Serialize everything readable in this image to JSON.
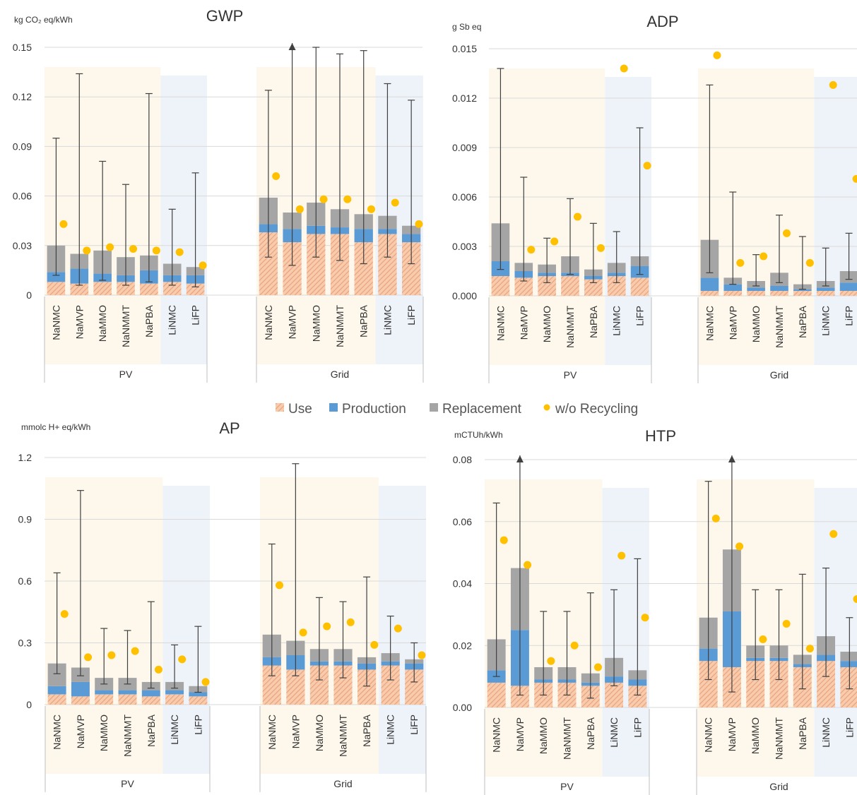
{
  "legend": [
    {
      "key": "use",
      "label": "Use",
      "color": "#F4B183",
      "symbol": "hatch"
    },
    {
      "key": "production",
      "label": "Production",
      "color": "#5B9BD5",
      "symbol": "square"
    },
    {
      "key": "replacement",
      "label": "Replacement",
      "color": "#A5A5A5",
      "symbol": "square"
    },
    {
      "key": "wo_recycling",
      "label": "w/o Recycling",
      "color": "#FFC000",
      "symbol": "dot"
    }
  ],
  "chart_data": [
    {
      "type": "bar",
      "stacked": true,
      "title": "GWP",
      "ylabel": "kg CO₂ eq/kWh",
      "ylim": [
        0,
        0.15
      ],
      "yticks": [
        "0",
        "0.03",
        "0.06",
        "0.09",
        "0.12",
        "0.15"
      ],
      "ytick_values": [
        0,
        0.03,
        0.06,
        0.09,
        0.12,
        0.15
      ],
      "grid": true,
      "groups": [
        {
          "name": "PV",
          "categories": [
            "NaNMC",
            "NaMVP",
            "NaMMO",
            "NaNMMT",
            "NaPBA",
            "LiNMC",
            "LiFP"
          ],
          "use": [
            0.008,
            0.007,
            0.008,
            0.008,
            0.007,
            0.008,
            0.007
          ],
          "production": [
            0.006,
            0.009,
            0.005,
            0.004,
            0.008,
            0.004,
            0.005
          ],
          "replacement": [
            0.016,
            0.009,
            0.014,
            0.011,
            0.009,
            0.007,
            0.005
          ],
          "err_low": [
            0.018,
            0.019,
            0.018,
            0.017,
            0.016,
            0.013,
            0.012
          ],
          "err_high": [
            0.095,
            0.134,
            0.081,
            0.067,
            0.122,
            0.052,
            0.074
          ],
          "wo_recycling": [
            0.043,
            0.027,
            0.029,
            0.028,
            0.027,
            0.026,
            0.018
          ]
        },
        {
          "name": "Grid",
          "categories": [
            "NaNMC",
            "NaMVP",
            "NaMMO",
            "NaNMMT",
            "NaPBA",
            "LiNMC",
            "LiFP"
          ],
          "use": [
            0.038,
            0.032,
            0.037,
            0.037,
            0.032,
            0.037,
            0.032
          ],
          "production": [
            0.005,
            0.008,
            0.005,
            0.004,
            0.008,
            0.003,
            0.005
          ],
          "replacement": [
            0.016,
            0.01,
            0.014,
            0.011,
            0.009,
            0.008,
            0.005
          ],
          "err_low": [
            0.036,
            0.032,
            0.033,
            0.031,
            0.03,
            0.025,
            0.023
          ],
          "err_high": [
            0.124,
            0.155,
            0.15,
            0.146,
            0.148,
            0.128,
            0.118
          ],
          "err_arrow": [
            false,
            true,
            false,
            false,
            false,
            false,
            false
          ],
          "wo_recycling": [
            0.072,
            0.052,
            0.058,
            0.058,
            0.052,
            0.056,
            0.043
          ]
        }
      ]
    },
    {
      "type": "bar",
      "stacked": true,
      "title": "ADP",
      "ylabel": "g Sb eq",
      "ylim": [
        0,
        0.015
      ],
      "yticks": [
        "0.000",
        "0.003",
        "0.006",
        "0.009",
        "0.012",
        "0.015"
      ],
      "ytick_values": [
        0,
        0.003,
        0.006,
        0.009,
        0.012,
        0.015
      ],
      "grid": true,
      "groups": [
        {
          "name": "PV",
          "categories": [
            "NaNMC",
            "NaMVP",
            "NaMMO",
            "NaNMMT",
            "NaPBA",
            "LiNMC",
            "LiFP"
          ],
          "use": [
            0.0012,
            0.0011,
            0.0012,
            0.0012,
            0.001,
            0.0012,
            0.0011
          ],
          "production": [
            0.0009,
            0.0004,
            0.0002,
            0.0002,
            0.0002,
            0.0002,
            0.0007
          ],
          "replacement": [
            0.0023,
            0.0005,
            0.0005,
            0.001,
            0.0004,
            0.0006,
            0.0006
          ],
          "err_low": [
            0.0028,
            0.0011,
            0.0011,
            0.0011,
            0.0008,
            0.0012,
            0.0011
          ],
          "err_high": [
            0.0138,
            0.0072,
            0.0035,
            0.0059,
            0.0044,
            0.0039,
            0.0102
          ],
          "wo_recycling": [
            null,
            0.0028,
            0.0033,
            0.0048,
            0.0029,
            0.0138,
            0.0079
          ]
        },
        {
          "name": "Grid",
          "categories": [
            "NaNMC",
            "NaMVP",
            "NaMMO",
            "NaNMMT",
            "NaPBA",
            "LiNMC",
            "LiFP"
          ],
          "use": [
            0.0003,
            0.0003,
            0.0003,
            0.0003,
            0.0003,
            0.0003,
            0.0003
          ],
          "production": [
            0.0008,
            0.0004,
            0.0002,
            0.0003,
            0.0001,
            0.0002,
            0.0005
          ],
          "replacement": [
            0.0023,
            0.0004,
            0.0004,
            0.0008,
            0.0003,
            0.0004,
            0.0007
          ],
          "err_low": [
            0.002,
            0.0004,
            0.0003,
            0.0006,
            0.0003,
            0.0003,
            0.0005
          ],
          "err_high": [
            0.0128,
            0.0063,
            0.0025,
            0.0049,
            0.0036,
            0.0029,
            0.0038
          ],
          "wo_recycling": [
            0.0146,
            0.002,
            0.0024,
            0.0038,
            0.002,
            0.0128,
            0.0071
          ]
        }
      ]
    },
    {
      "type": "bar",
      "stacked": true,
      "title": "AP",
      "ylabel": "mmolc H+ eq/kWh",
      "ylim": [
        0,
        1.2
      ],
      "yticks": [
        "0",
        "0.3",
        "0.6",
        "0.9",
        "1.2"
      ],
      "ytick_values": [
        0,
        0.3,
        0.6,
        0.9,
        1.2
      ],
      "grid": true,
      "groups": [
        {
          "name": "PV",
          "categories": [
            "NaNMC",
            "NaMVP",
            "NaMMO",
            "NaNMMT",
            "NaPBA",
            "LiNMC",
            "LiFP"
          ],
          "use": [
            0.05,
            0.04,
            0.05,
            0.05,
            0.04,
            0.05,
            0.04
          ],
          "production": [
            0.04,
            0.07,
            0.02,
            0.02,
            0.03,
            0.02,
            0.02
          ],
          "replacement": [
            0.11,
            0.07,
            0.06,
            0.06,
            0.04,
            0.04,
            0.03
          ],
          "err_low": [
            0.05,
            0.04,
            0.03,
            0.03,
            0.03,
            0.03,
            0.03
          ],
          "err_high": [
            0.64,
            1.04,
            0.37,
            0.36,
            0.5,
            0.29,
            0.38
          ],
          "wo_recycling": [
            0.44,
            0.23,
            0.24,
            0.26,
            0.17,
            0.22,
            0.11
          ]
        },
        {
          "name": "Grid",
          "categories": [
            "NaNMC",
            "NaMVP",
            "NaMMO",
            "NaNMMT",
            "NaPBA",
            "LiNMC",
            "LiFP"
          ],
          "use": [
            0.19,
            0.17,
            0.19,
            0.19,
            0.17,
            0.19,
            0.17
          ],
          "production": [
            0.04,
            0.07,
            0.02,
            0.02,
            0.03,
            0.02,
            0.03
          ],
          "replacement": [
            0.11,
            0.07,
            0.06,
            0.06,
            0.03,
            0.04,
            0.02
          ],
          "err_low": [
            0.2,
            0.17,
            0.15,
            0.14,
            0.14,
            0.13,
            0.11
          ],
          "err_high": [
            0.78,
            1.17,
            0.52,
            0.5,
            0.62,
            0.43,
            0.3
          ],
          "wo_recycling": [
            0.58,
            0.35,
            0.38,
            0.4,
            0.29,
            0.37,
            0.24
          ]
        }
      ]
    },
    {
      "type": "bar",
      "stacked": true,
      "title": "HTP",
      "ylabel": "mCTUh/kWh",
      "ylim": [
        0,
        0.08
      ],
      "yticks": [
        "0.00",
        "0.02",
        "0.04",
        "0.06",
        "0.08"
      ],
      "ytick_values": [
        0,
        0.02,
        0.04,
        0.06,
        0.08
      ],
      "grid": true,
      "groups": [
        {
          "name": "PV",
          "categories": [
            "NaNMC",
            "NaMVP",
            "NaMMO",
            "NaNMMT",
            "NaPBA",
            "LiNMC",
            "LiFP"
          ],
          "use": [
            0.008,
            0.007,
            0.008,
            0.008,
            0.007,
            0.008,
            0.007
          ],
          "production": [
            0.004,
            0.018,
            0.001,
            0.001,
            0.001,
            0.002,
            0.002
          ],
          "replacement": [
            0.01,
            0.02,
            0.004,
            0.004,
            0.003,
            0.006,
            0.003
          ],
          "err_low": [
            0.012,
            0.041,
            0.009,
            0.009,
            0.008,
            0.009,
            0.008
          ],
          "err_high": [
            0.066,
            0.081,
            0.031,
            0.031,
            0.037,
            0.038,
            0.048
          ],
          "err_arrow": [
            false,
            true,
            false,
            false,
            false,
            false,
            false
          ],
          "wo_recycling": [
            0.054,
            0.046,
            0.015,
            0.02,
            0.013,
            0.049,
            0.029
          ]
        },
        {
          "name": "Grid",
          "categories": [
            "NaNMC",
            "NaMVP",
            "NaMMO",
            "NaNMMT",
            "NaPBA",
            "LiNMC",
            "LiFP"
          ],
          "use": [
            0.015,
            0.013,
            0.015,
            0.015,
            0.013,
            0.015,
            0.013
          ],
          "production": [
            0.004,
            0.018,
            0.001,
            0.001,
            0.001,
            0.002,
            0.002
          ],
          "replacement": [
            0.01,
            0.02,
            0.004,
            0.004,
            0.003,
            0.006,
            0.003
          ],
          "err_low": [
            0.02,
            0.046,
            0.011,
            0.011,
            0.011,
            0.013,
            0.012
          ],
          "err_high": [
            0.073,
            0.081,
            0.038,
            0.038,
            0.043,
            0.045,
            0.029
          ],
          "err_arrow": [
            false,
            true,
            false,
            false,
            false,
            false,
            false
          ],
          "wo_recycling": [
            0.061,
            0.052,
            0.022,
            0.027,
            0.019,
            0.056,
            0.035
          ]
        }
      ]
    }
  ]
}
